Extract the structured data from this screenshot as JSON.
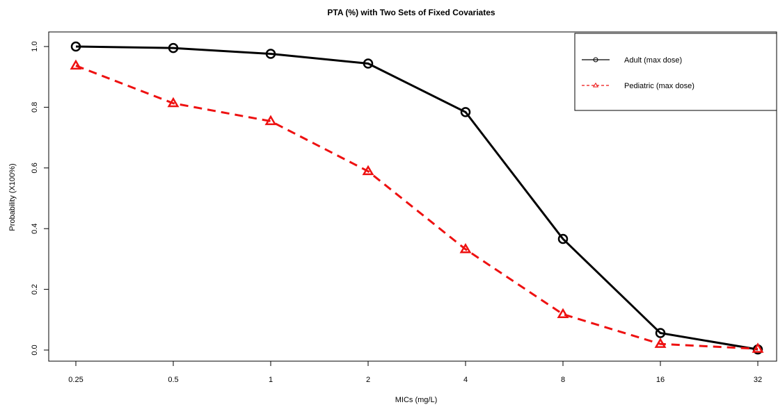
{
  "chart_data": {
    "type": "line",
    "title": "PTA (%) with Two Sets of Fixed Covariates",
    "xlabel": "MICs (mg/L)",
    "ylabel": "Probability (X100%)",
    "categories": [
      "0.25",
      "0.5",
      "1",
      "2",
      "4",
      "8",
      "16",
      "32"
    ],
    "yticks": [
      "0.0",
      "0.2",
      "0.4",
      "0.6",
      "0.8",
      "1.0"
    ],
    "ylim": [
      0,
      1
    ],
    "grid": false,
    "legend_position": "top-right",
    "series": [
      {
        "name": "Adult (max dose)",
        "values": [
          1.0,
          0.995,
          0.976,
          0.944,
          0.784,
          0.366,
          0.056,
          0.002
        ],
        "color": "#000000",
        "line_style": "solid",
        "marker": "circle"
      },
      {
        "name": "Pediatric (max dose)",
        "values": [
          0.937,
          0.813,
          0.754,
          0.589,
          0.332,
          0.118,
          0.02,
          0.004
        ],
        "color": "#ee1111",
        "line_style": "dashed",
        "marker": "triangle"
      }
    ]
  }
}
